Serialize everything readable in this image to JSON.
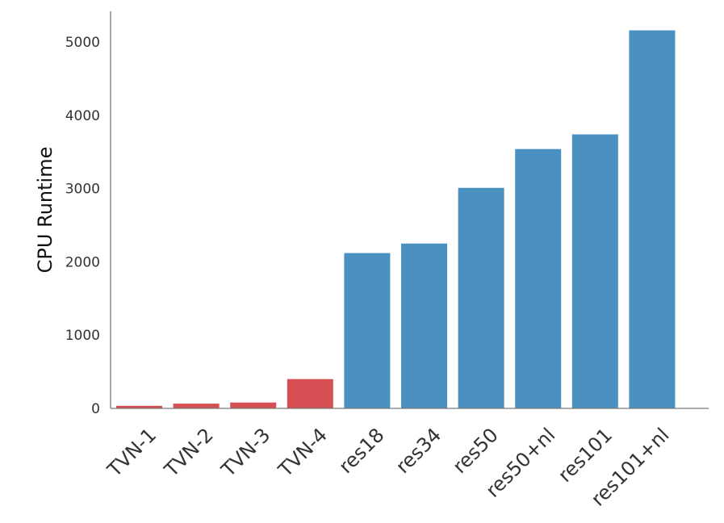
{
  "chart_data": {
    "type": "bar",
    "title": "",
    "xlabel": "",
    "ylabel": "CPU Runtime",
    "categories": [
      "TVN-1",
      "TVN-2",
      "TVN-3",
      "TVN-4",
      "res18",
      "res34",
      "res50",
      "res50+nl",
      "res101",
      "res101+nl"
    ],
    "values": [
      35,
      65,
      80,
      400,
      2120,
      2250,
      3010,
      3540,
      3740,
      5160
    ],
    "bar_colors": [
      "#d64f52",
      "#d64f52",
      "#d64f52",
      "#d64f52",
      "#4a91c2",
      "#4a91c2",
      "#4a91c2",
      "#4a91c2",
      "#4a91c2",
      "#4a91c2"
    ],
    "yticks": [
      0,
      1000,
      2000,
      3000,
      4000,
      5000
    ],
    "ylim": [
      0,
      5420
    ],
    "grid": false,
    "legend": "none",
    "xtick_rotation": 45
  }
}
